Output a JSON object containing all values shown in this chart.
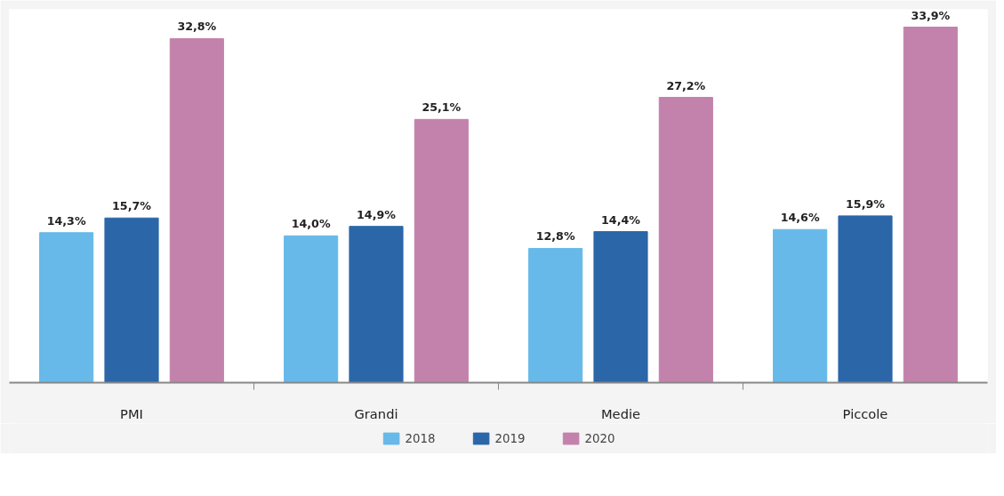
{
  "chart_data": {
    "type": "bar",
    "categories": [
      "PMI",
      "Grandi",
      "Medie",
      "Piccole"
    ],
    "series": [
      {
        "name": "2018",
        "color": "#66b9e8",
        "values": [
          14.3,
          14.0,
          12.8,
          14.6
        ],
        "value_labels": [
          "14,3%",
          "14,0%",
          "12,8%",
          "14,6%"
        ]
      },
      {
        "name": "2019",
        "color": "#2b67a8",
        "values": [
          15.7,
          14.9,
          14.4,
          15.9
        ],
        "value_labels": [
          "15,7%",
          "14,9%",
          "14,4%",
          "15,9%"
        ]
      },
      {
        "name": "2020",
        "color": "#c282ab",
        "values": [
          32.8,
          25.1,
          27.2,
          33.9
        ],
        "value_labels": [
          "32,8%",
          "25,1%",
          "27,2%",
          "33,9%"
        ]
      }
    ],
    "tick_labels": "x",
    "legend": "bottom"
  }
}
